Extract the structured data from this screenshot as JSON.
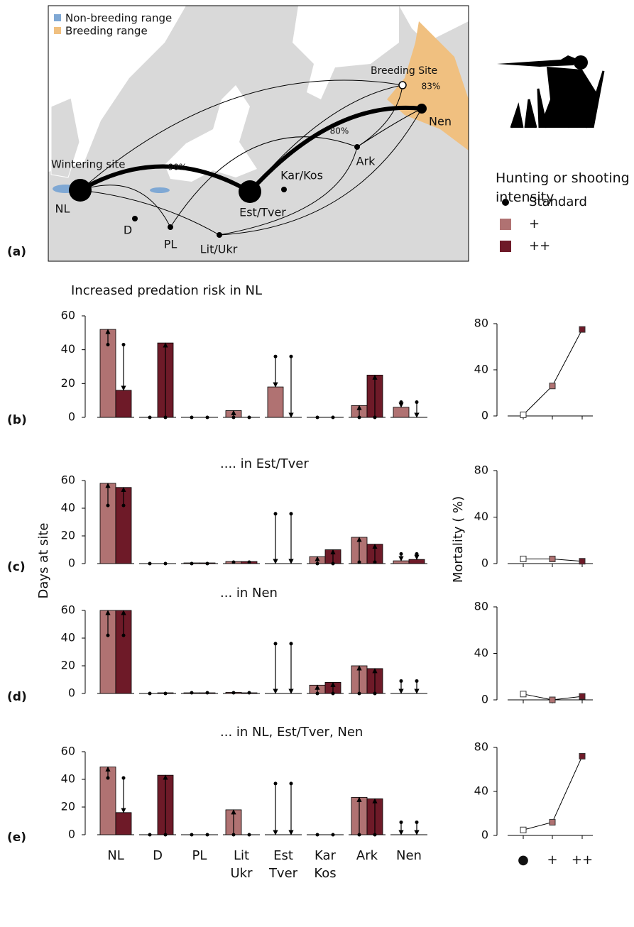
{
  "map": {
    "legend": [
      {
        "label": "Non-breeding range",
        "color": "#7fa8d4"
      },
      {
        "label": "Breeding range",
        "color": "#f0c080"
      }
    ],
    "annotations": [
      "Wintering site",
      "Breeding Site"
    ],
    "sites": [
      "NL",
      "D",
      "PL",
      "Lit/Ukr",
      "Est/Tver",
      "Kar/Kos",
      "Ark",
      "Nen"
    ],
    "percentages": [
      "90%",
      "80%",
      "83%"
    ]
  },
  "hunting_legend": {
    "title": "Hunting or shooting intensity",
    "items": [
      {
        "label": "Standard",
        "color": "#000000"
      },
      {
        "label": "+",
        "color": "#b07272"
      },
      {
        "label": "++",
        "color": "#6e1a28"
      }
    ]
  },
  "panel_labels": [
    "(a)",
    "(b)",
    "(c)",
    "(d)",
    "(e)"
  ],
  "days_axis_label": "Days at site",
  "mortality_axis_label": "Mortality ( %)",
  "chart_data": [
    {
      "type": "bar",
      "title": "Increased predation risk in NL",
      "ylim": [
        0,
        60
      ],
      "yticks": [
        0,
        20,
        40,
        60
      ],
      "standard": [
        43,
        0,
        0,
        0,
        36,
        0,
        0,
        9
      ],
      "series": [
        {
          "color": "#b07272",
          "values": [
            52,
            0,
            0,
            4,
            18,
            0,
            7,
            6
          ]
        },
        {
          "color": "#6e1a28",
          "values": [
            16,
            44,
            0,
            0,
            0,
            0,
            25,
            0
          ]
        }
      ]
    },
    {
      "type": "bar",
      "title": ".... in Est/Tver",
      "ylim": [
        0,
        60
      ],
      "yticks": [
        0,
        20,
        40,
        60
      ],
      "standard": [
        42,
        0,
        0,
        1,
        36,
        0,
        1,
        7
      ],
      "series": [
        {
          "color": "#b07272",
          "values": [
            58,
            0,
            0.5,
            1.5,
            0,
            5,
            19,
            2
          ]
        },
        {
          "color": "#6e1a28",
          "values": [
            55,
            0,
            0.5,
            1.5,
            0,
            10,
            14,
            3
          ]
        }
      ]
    },
    {
      "type": "bar",
      "title": "... in Nen",
      "ylim": [
        0,
        60
      ],
      "yticks": [
        0,
        20,
        40,
        60
      ],
      "standard": [
        42,
        0,
        0.5,
        0.5,
        36,
        0,
        0,
        9
      ],
      "series": [
        {
          "color": "#b07272",
          "values": [
            60,
            0,
            0.5,
            0.8,
            0,
            6,
            20,
            0
          ]
        },
        {
          "color": "#6e1a28",
          "values": [
            60,
            0.5,
            0.5,
            0.5,
            0,
            8,
            18,
            0
          ]
        }
      ]
    },
    {
      "type": "bar",
      "title": "... in NL, Est/Tver, Nen",
      "ylim": [
        0,
        60
      ],
      "yticks": [
        0,
        20,
        40,
        60
      ],
      "categories": [
        "NL",
        "D",
        "PL",
        "Lit Ukr",
        "Est Tver",
        "Kar Kos",
        "Ark",
        "Nen"
      ],
      "standard": [
        41,
        0,
        0,
        0,
        37,
        0,
        0,
        9
      ],
      "series": [
        {
          "color": "#b07272",
          "values": [
            49,
            0,
            0,
            18,
            0,
            0,
            27,
            0
          ]
        },
        {
          "color": "#6e1a28",
          "values": [
            16,
            43,
            0,
            0,
            0,
            0,
            26,
            0
          ]
        }
      ]
    },
    {
      "type": "line",
      "ylim": [
        0,
        80
      ],
      "yticks": [
        0,
        40,
        80
      ],
      "point_colors": [
        "#ffffff",
        "#b07272",
        "#6e1a28"
      ],
      "series": [
        {
          "color": "#000000",
          "values": [
            1,
            26,
            75
          ]
        }
      ]
    },
    {
      "type": "line",
      "ylim": [
        0,
        80
      ],
      "yticks": [
        0,
        40,
        80
      ],
      "point_colors": [
        "#ffffff",
        "#b07272",
        "#6e1a28"
      ],
      "series": [
        {
          "color": "#000000",
          "values": [
            4,
            4,
            2
          ]
        }
      ]
    },
    {
      "type": "line",
      "ylim": [
        0,
        80
      ],
      "yticks": [
        0,
        40,
        80
      ],
      "point_colors": [
        "#ffffff",
        "#b07272",
        "#6e1a28"
      ],
      "series": [
        {
          "color": "#000000",
          "values": [
            5,
            0,
            3
          ]
        }
      ]
    },
    {
      "type": "line",
      "ylim": [
        0,
        80
      ],
      "yticks": [
        0,
        40,
        80
      ],
      "point_colors": [
        "#ffffff",
        "#b07272",
        "#6e1a28"
      ],
      "categories": [
        "●",
        "+",
        "++"
      ],
      "series": [
        {
          "color": "#000000",
          "values": [
            5,
            12,
            72
          ]
        }
      ]
    }
  ]
}
